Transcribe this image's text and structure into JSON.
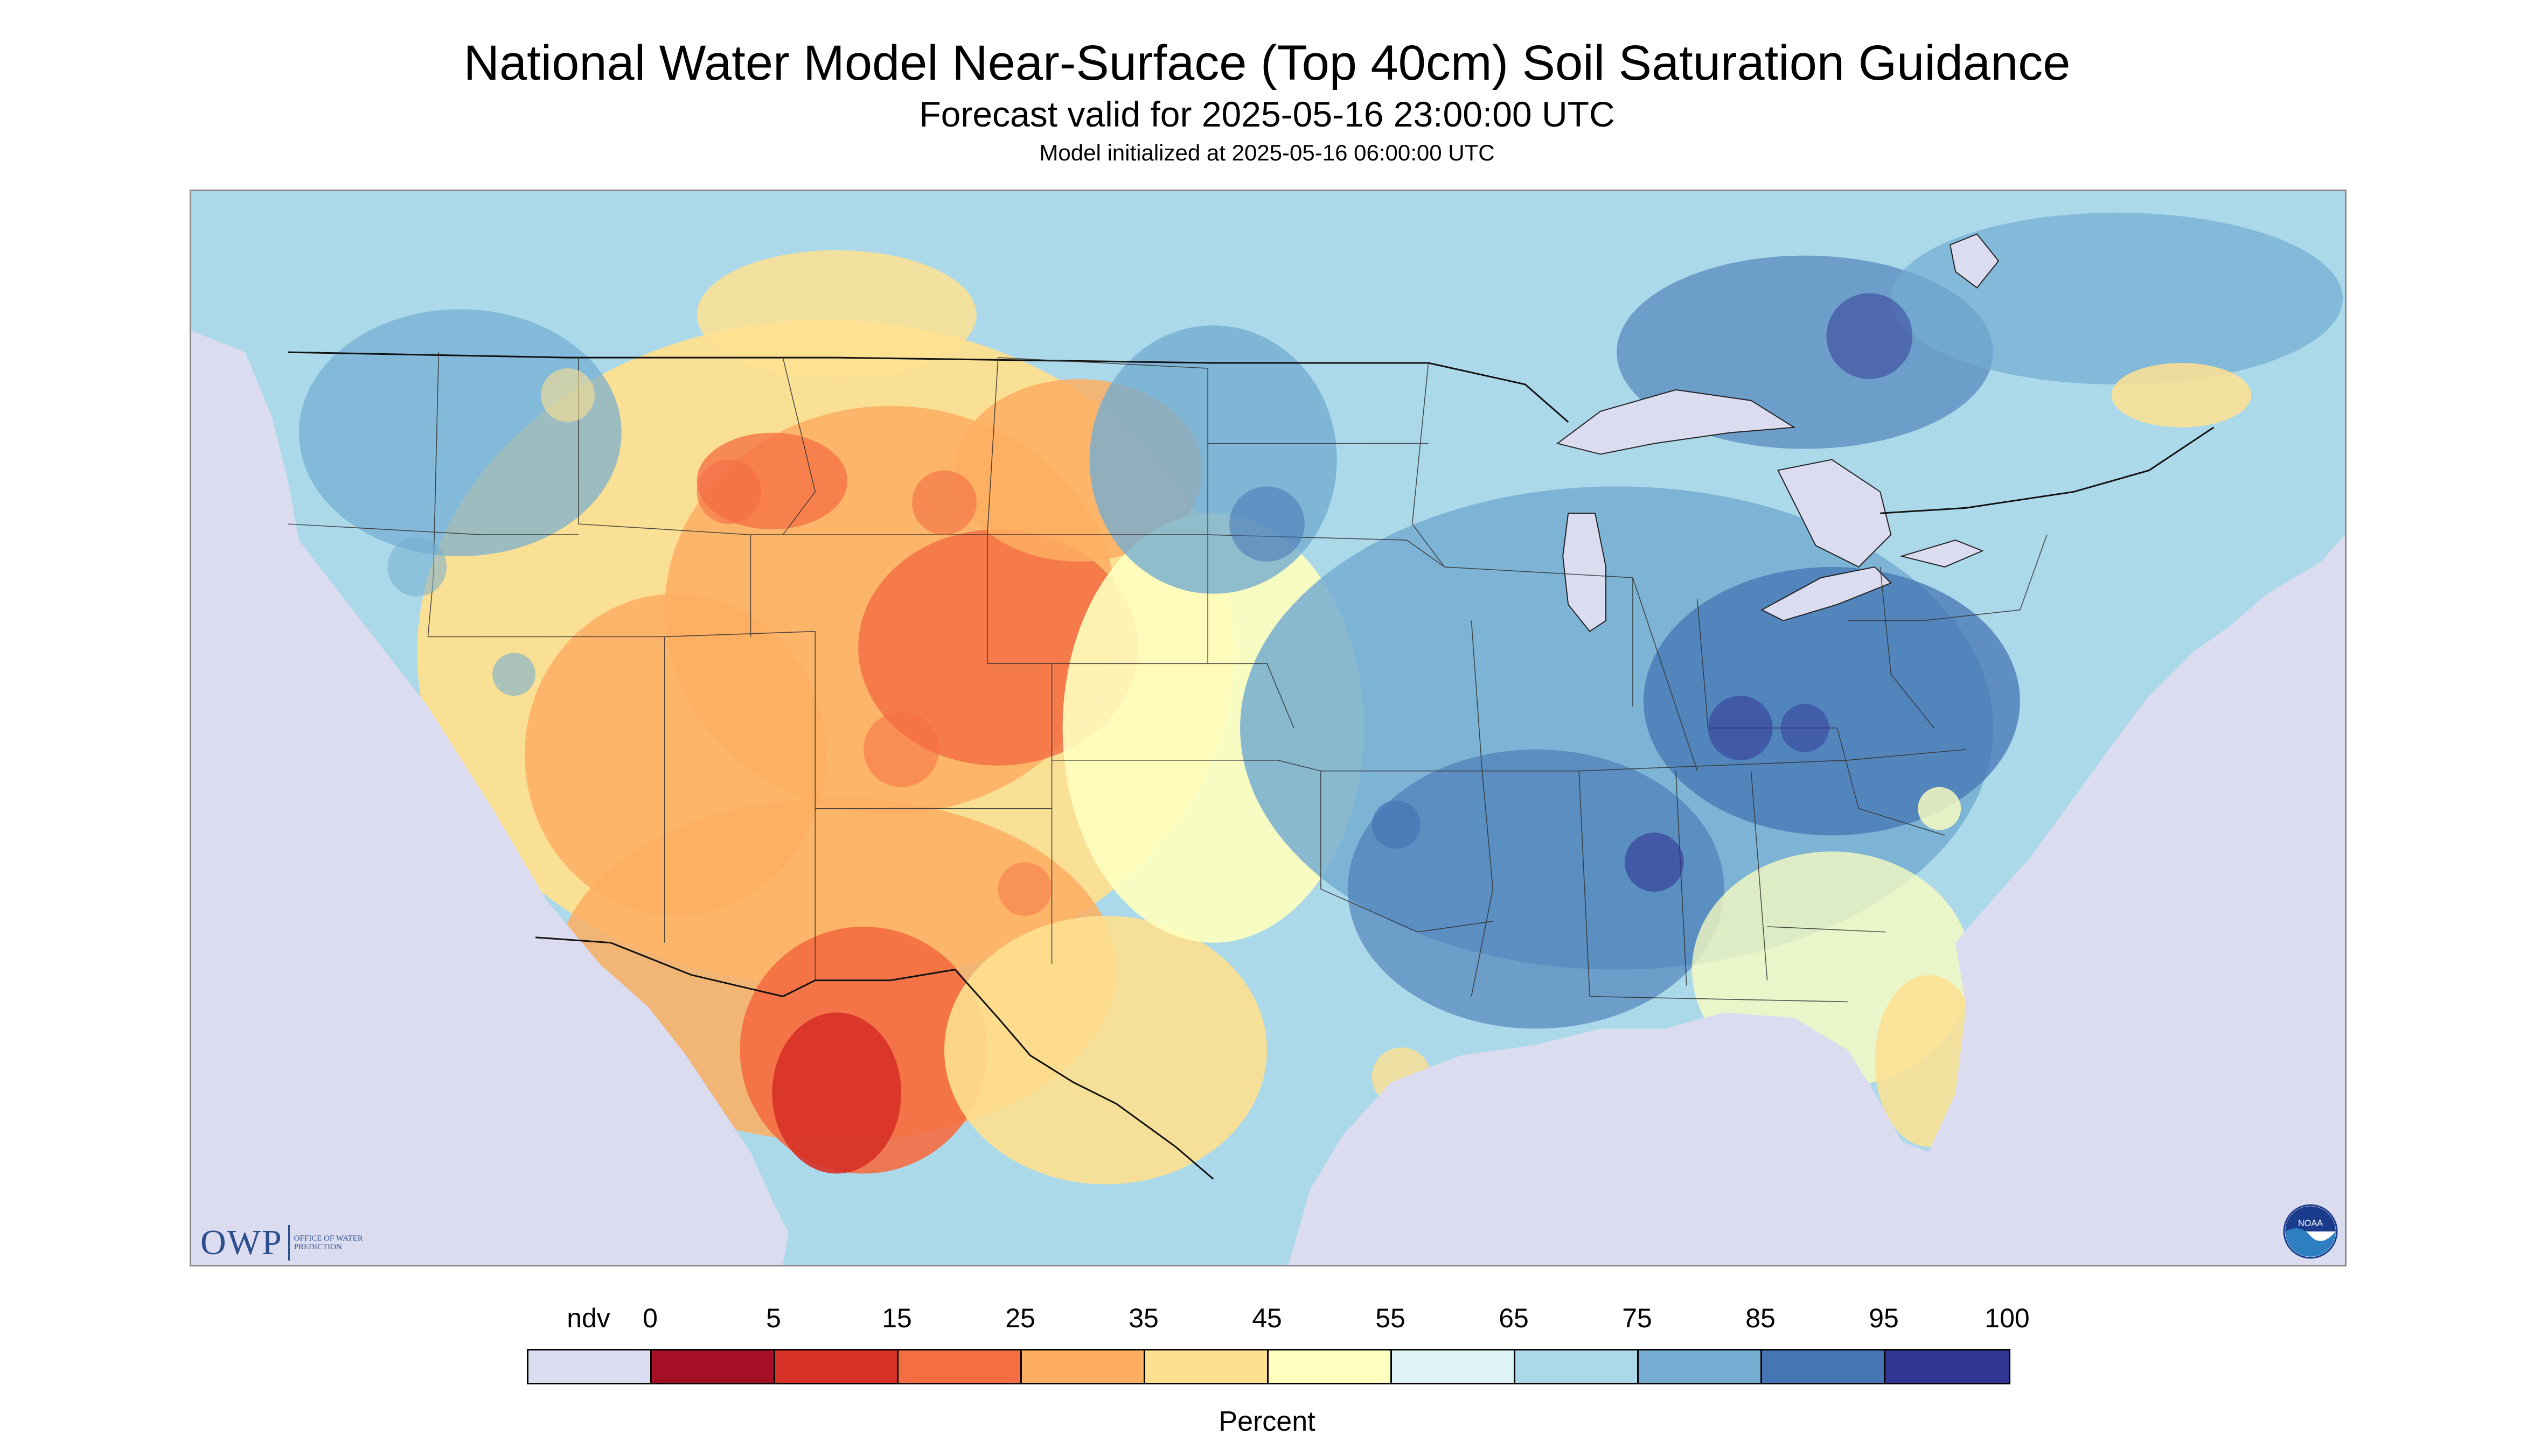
{
  "header": {
    "title": "National Water Model Near-Surface (Top 40cm) Soil Saturation Guidance",
    "subtitle": "Forecast valid for 2025-05-16 23:00:00 UTC",
    "init_line": "Model initialized at 2025-05-16 06:00:00 UTC"
  },
  "logos": {
    "owp_mark": "OWP",
    "owp_text": "Office of Water Prediction",
    "noaa_text": "NOAA"
  },
  "legend": {
    "labels": [
      "ndv",
      "0",
      "5",
      "15",
      "25",
      "35",
      "45",
      "55",
      "65",
      "75",
      "85",
      "95",
      "100"
    ],
    "colors": [
      "#dcdcf0",
      "#a50f26",
      "#d73027",
      "#f46d43",
      "#fdae61",
      "#fee090",
      "#ffffbf",
      "#e0f3f8",
      "#abd9e9",
      "#74add1",
      "#4575b4",
      "#313695"
    ],
    "unit": "Percent"
  },
  "map": {
    "nodata_color": "#dcdcf0",
    "land_colors": {
      "dry_red": "#d73027",
      "dry_orange": "#f46d43",
      "light_orange": "#fdae61",
      "yellow": "#fee090",
      "pale_yellow": "#ffffbf",
      "pale_blue": "#e0f3f8",
      "light_blue": "#abd9e9",
      "mid_blue": "#74add1",
      "blue": "#4575b4",
      "dark_blue": "#313695"
    }
  }
}
